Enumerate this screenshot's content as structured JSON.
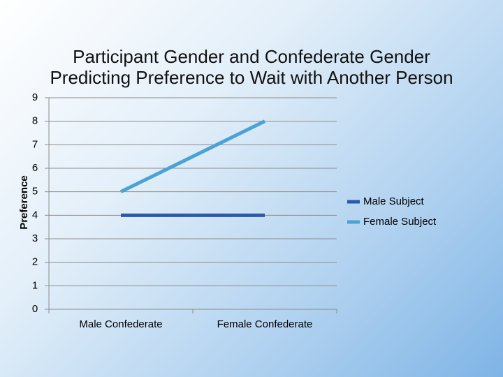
{
  "chart_data": {
    "type": "line",
    "title": "Participant Gender and Confederate Gender Predicting Preference to Wait with Another Person",
    "y_label": "Preference",
    "categories": [
      "Male Confederate",
      "Female Confederate"
    ],
    "series": [
      {
        "name": "Male Subject",
        "color": "#2a5aa8",
        "values": [
          4,
          4
        ]
      },
      {
        "name": "Female Subject",
        "color": "#4ba3d3",
        "values": [
          5,
          8
        ]
      }
    ],
    "ylim": [
      0,
      9
    ],
    "yticks": [
      0,
      1,
      2,
      3,
      4,
      5,
      6,
      7,
      8,
      9
    ],
    "grid": true,
    "legend": "right"
  }
}
